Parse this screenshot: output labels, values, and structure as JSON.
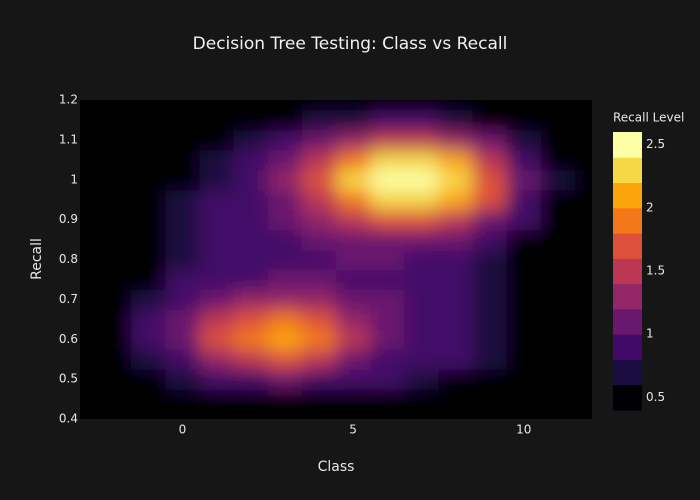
{
  "chart_data": {
    "type": "contour",
    "title": "Decision Tree Testing: Class vs Recall",
    "x_label": "Class",
    "y_label": "Recall",
    "colorbar_title": "Recall Level",
    "x": [
      -3,
      -2,
      -1,
      0,
      1,
      2,
      3,
      4,
      5,
      6,
      7,
      8,
      9,
      10,
      11,
      12
    ],
    "y": [
      0.4,
      0.45,
      0.5,
      0.55,
      0.6,
      0.65,
      0.7,
      0.75,
      0.8,
      0.85,
      0.9,
      0.95,
      1.0,
      1.05,
      1.1,
      1.15,
      1.2
    ],
    "z": [
      [
        0.3,
        0.3,
        0.3,
        0.3,
        0.3,
        0.3,
        0.3,
        0.3,
        0.3,
        0.3,
        0.3,
        0.3,
        0.3,
        0.3,
        0.3,
        0.3
      ],
      [
        0.3,
        0.3,
        0.35,
        0.4,
        0.5,
        0.55,
        0.6,
        0.6,
        0.55,
        0.5,
        0.45,
        0.4,
        0.35,
        0.3,
        0.3,
        0.3
      ],
      [
        0.3,
        0.4,
        0.5,
        0.7,
        0.9,
        1.0,
        1.05,
        1.0,
        0.9,
        0.8,
        0.7,
        0.6,
        0.5,
        0.4,
        0.3,
        0.3
      ],
      [
        0.3,
        0.5,
        0.7,
        1.0,
        1.3,
        1.55,
        1.6,
        1.45,
        1.2,
        1.0,
        0.9,
        0.8,
        0.65,
        0.5,
        0.35,
        0.3
      ],
      [
        0.35,
        0.55,
        0.8,
        1.2,
        1.6,
        1.95,
        2.1,
        1.85,
        1.5,
        1.2,
        1.0,
        0.9,
        0.75,
        0.55,
        0.4,
        0.3
      ],
      [
        0.35,
        0.55,
        0.8,
        1.1,
        1.5,
        1.8,
        1.85,
        1.7,
        1.4,
        1.15,
        1.0,
        0.9,
        0.75,
        0.55,
        0.4,
        0.3
      ],
      [
        0.3,
        0.5,
        0.7,
        0.95,
        1.2,
        1.35,
        1.4,
        1.3,
        1.15,
        1.05,
        0.95,
        0.85,
        0.7,
        0.5,
        0.35,
        0.3
      ],
      [
        0.3,
        0.4,
        0.6,
        0.8,
        0.95,
        1.0,
        1.05,
        1.05,
        1.0,
        1.0,
        0.95,
        0.85,
        0.7,
        0.5,
        0.35,
        0.3
      ],
      [
        0.3,
        0.35,
        0.5,
        0.75,
        0.85,
        0.9,
        0.95,
        1.0,
        1.05,
        1.05,
        1.0,
        0.9,
        0.75,
        0.55,
        0.35,
        0.3
      ],
      [
        0.3,
        0.3,
        0.45,
        0.7,
        0.8,
        0.85,
        0.95,
        1.05,
        1.15,
        1.2,
        1.2,
        1.05,
        0.85,
        0.6,
        0.4,
        0.3
      ],
      [
        0.3,
        0.3,
        0.45,
        0.7,
        0.8,
        0.9,
        1.05,
        1.3,
        1.55,
        1.75,
        1.75,
        1.55,
        1.2,
        0.8,
        0.5,
        0.3
      ],
      [
        0.3,
        0.3,
        0.45,
        0.65,
        0.8,
        0.95,
        1.2,
        1.55,
        1.95,
        2.3,
        2.35,
        2.1,
        1.6,
        1.0,
        0.6,
        0.3
      ],
      [
        0.3,
        0.3,
        0.4,
        0.6,
        0.75,
        0.95,
        1.25,
        1.7,
        2.2,
        2.6,
        2.7,
        2.35,
        1.75,
        1.1,
        0.65,
        0.35
      ],
      [
        0.3,
        0.3,
        0.35,
        0.5,
        0.65,
        0.85,
        1.1,
        1.5,
        1.95,
        2.25,
        2.3,
        2.05,
        1.55,
        1.0,
        0.55,
        0.3
      ],
      [
        0.3,
        0.3,
        0.3,
        0.4,
        0.5,
        0.65,
        0.85,
        1.1,
        1.35,
        1.5,
        1.5,
        1.35,
        1.05,
        0.7,
        0.45,
        0.3
      ],
      [
        0.3,
        0.3,
        0.3,
        0.3,
        0.35,
        0.45,
        0.55,
        0.65,
        0.75,
        0.8,
        0.8,
        0.7,
        0.55,
        0.45,
        0.35,
        0.3
      ],
      [
        0.3,
        0.3,
        0.3,
        0.3,
        0.3,
        0.3,
        0.3,
        0.3,
        0.3,
        0.3,
        0.3,
        0.3,
        0.3,
        0.3,
        0.3,
        0.3
      ]
    ],
    "contours": {
      "start": 0.4,
      "end": 2.6,
      "size": 0.2
    },
    "colors": [
      "#000004",
      "#1b0c41",
      "#420a68",
      "#6a176e",
      "#932667",
      "#bc3754",
      "#dd513a",
      "#f37819",
      "#fca50a",
      "#f6d746",
      "#fcffa4"
    ],
    "xlim": [
      -3,
      12
    ],
    "ylim": [
      0.4,
      1.2
    ],
    "xticks": [
      0,
      5,
      10
    ],
    "yticks": [
      0.4,
      0.5,
      0.6,
      0.7,
      0.8,
      0.9,
      1,
      1.1,
      1.2
    ],
    "colorbar_ticks": [
      0.5,
      1,
      1.5,
      2,
      2.5
    ]
  }
}
